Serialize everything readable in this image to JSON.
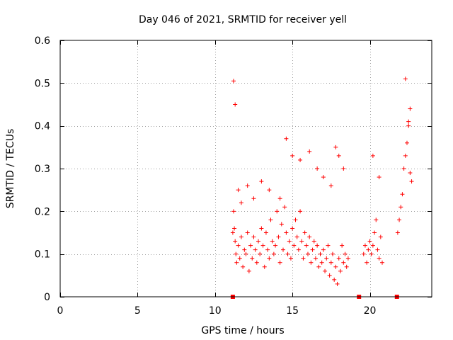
{
  "chart_data": {
    "type": "scatter",
    "title": "Day 046 of 2021, SRMTID for receiver yell",
    "xlabel": "GPS time / hours",
    "ylabel": "SRMTID / TECUs",
    "xlim": [
      0,
      24
    ],
    "ylim": [
      0,
      0.6
    ],
    "grid": true,
    "x_ticks": [
      0,
      5,
      10,
      15,
      20
    ],
    "x_tick_labels": [
      "0",
      "5",
      "10",
      "15",
      "20"
    ],
    "y_ticks": [
      0,
      0.1,
      0.2,
      0.3,
      0.4,
      0.5,
      0.6
    ],
    "y_tick_labels": [
      "0",
      "0.1",
      "0.2",
      "0.3",
      "0.4",
      "0.5",
      "0.6"
    ],
    "marker": "+",
    "color": "#ff0000",
    "series": [
      {
        "name": "SRMTID",
        "x": [
          11.15,
          11.2,
          11.25,
          11.3,
          11.35,
          11.4,
          11.5,
          11.6,
          11.7,
          11.8,
          11.9,
          12.0,
          12.1,
          12.2,
          12.3,
          12.4,
          12.5,
          12.6,
          12.7,
          12.8,
          12.9,
          13.0,
          13.1,
          13.2,
          13.3,
          13.4,
          13.5,
          13.6,
          13.7,
          13.8,
          13.9,
          14.0,
          14.1,
          14.2,
          14.3,
          14.4,
          14.5,
          14.6,
          14.7,
          14.8,
          14.9,
          15.0,
          15.1,
          15.2,
          15.3,
          15.4,
          15.5,
          15.6,
          15.7,
          15.8,
          15.9,
          16.0,
          16.1,
          16.2,
          16.3,
          16.4,
          16.5,
          16.6,
          16.7,
          16.8,
          16.9,
          17.0,
          17.1,
          17.2,
          17.3,
          17.4,
          17.5,
          17.6,
          17.7,
          17.8,
          17.9,
          18.0,
          18.1,
          18.2,
          18.3,
          18.4,
          18.5,
          18.6,
          19.6,
          19.7,
          19.8,
          19.9,
          20.0,
          20.1,
          20.2,
          20.3,
          20.4,
          20.5,
          20.6,
          20.7,
          20.8,
          21.8,
          21.9,
          22.0,
          22.1,
          22.2,
          22.3,
          22.4,
          22.5,
          22.6,
          22.7,
          11.2,
          11.3,
          11.5,
          11.7,
          12.1,
          12.5,
          13.0,
          13.5,
          14.2,
          14.6,
          15.0,
          15.5,
          16.1,
          16.6,
          17.0,
          17.5,
          17.8,
          18.0,
          18.3,
          20.2,
          20.6,
          22.3,
          22.6,
          22.5
        ],
        "y": [
          0.15,
          0.2,
          0.16,
          0.13,
          0.1,
          0.08,
          0.12,
          0.09,
          0.14,
          0.07,
          0.11,
          0.1,
          0.15,
          0.06,
          0.12,
          0.09,
          0.14,
          0.11,
          0.08,
          0.13,
          0.1,
          0.16,
          0.12,
          0.07,
          0.15,
          0.11,
          0.09,
          0.18,
          0.13,
          0.1,
          0.12,
          0.2,
          0.14,
          0.08,
          0.17,
          0.11,
          0.21,
          0.15,
          0.1,
          0.13,
          0.09,
          0.16,
          0.12,
          0.18,
          0.14,
          0.11,
          0.2,
          0.13,
          0.09,
          0.15,
          0.12,
          0.1,
          0.14,
          0.08,
          0.11,
          0.13,
          0.09,
          0.12,
          0.07,
          0.1,
          0.08,
          0.11,
          0.06,
          0.09,
          0.12,
          0.05,
          0.08,
          0.1,
          0.04,
          0.07,
          0.03,
          0.09,
          0.06,
          0.12,
          0.08,
          0.1,
          0.07,
          0.09,
          0.1,
          0.12,
          0.08,
          0.11,
          0.13,
          0.1,
          0.12,
          0.15,
          0.18,
          0.11,
          0.09,
          0.14,
          0.08,
          0.15,
          0.18,
          0.21,
          0.24,
          0.3,
          0.33,
          0.36,
          0.4,
          0.29,
          0.27,
          0.505,
          0.45,
          0.25,
          0.22,
          0.26,
          0.23,
          0.27,
          0.25,
          0.23,
          0.37,
          0.33,
          0.32,
          0.34,
          0.3,
          0.28,
          0.26,
          0.35,
          0.33,
          0.3,
          0.33,
          0.28,
          0.51,
          0.44,
          0.41
        ],
        "marker_squares_x": [
          11.15,
          19.3,
          21.75
        ]
      }
    ]
  }
}
